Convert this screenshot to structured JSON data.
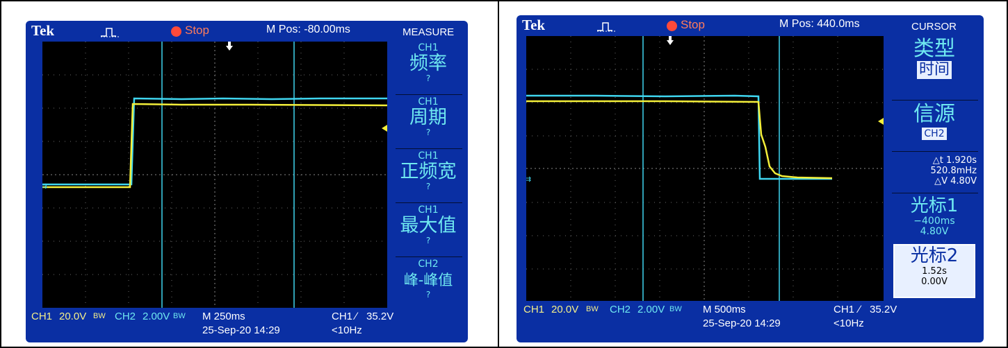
{
  "left_screen": {
    "brand": "Tek",
    "run_state": "Stop",
    "mpos": "M Pos: -80.00ms",
    "menu_title": "MEASURE",
    "measure_items": [
      {
        "channel": "CH1",
        "name": "频率",
        "value": "?"
      },
      {
        "channel": "CH1",
        "name": "周期",
        "value": "?"
      },
      {
        "channel": "CH1",
        "name": "正频宽",
        "value": "?"
      },
      {
        "channel": "CH1",
        "name": "最大值",
        "value": "?"
      },
      {
        "channel": "CH2",
        "name": "峰-峰值",
        "value": "?"
      }
    ],
    "bottom": {
      "ch1": "CH1",
      "ch1_scale": "20.0V",
      "bw1": "BW",
      "ch2": "CH2",
      "ch2_scale": "2.00V",
      "bw2": "BW",
      "timebase": "M 250ms",
      "datetime": "25-Sep-20 14:29",
      "trig_src": "CH1",
      "trig_slope": "∕",
      "trig_level": "35.2V",
      "freq": "<10Hz"
    }
  },
  "right_screen": {
    "brand": "Tek",
    "run_state": "Stop",
    "mpos": "M Pos: 440.0ms",
    "menu_title": "CURSOR",
    "type_label": "类型",
    "type_value": "时间",
    "source_label": "信源",
    "source_value": "CH2",
    "delta_t": "△t 1.920s",
    "inv_delta_t": "520.8mHz",
    "delta_v": "△V 4.80V",
    "cursor1_label": "光标1",
    "cursor1_time": "−400ms",
    "cursor1_volt": "4.80V",
    "cursor2_label": "光标2",
    "cursor2_time": "1.52s",
    "cursor2_volt": "0.00V",
    "bottom": {
      "ch1": "CH1",
      "ch1_scale": "20.0V",
      "bw1": "BW",
      "ch2": "CH2",
      "ch2_scale": "2.00V",
      "bw2": "BW",
      "timebase": "M 500ms",
      "datetime": "25-Sep-20 14:29",
      "trig_src": "CH1",
      "trig_slope": "∕",
      "trig_level": "35.2V",
      "freq": "<10Hz"
    }
  },
  "colors": {
    "ch1_trace": "#f4ef3a",
    "ch2_trace": "#3fd6f0",
    "screen_bezel": "#0a2fa3",
    "grid": "#7a7a7a"
  }
}
